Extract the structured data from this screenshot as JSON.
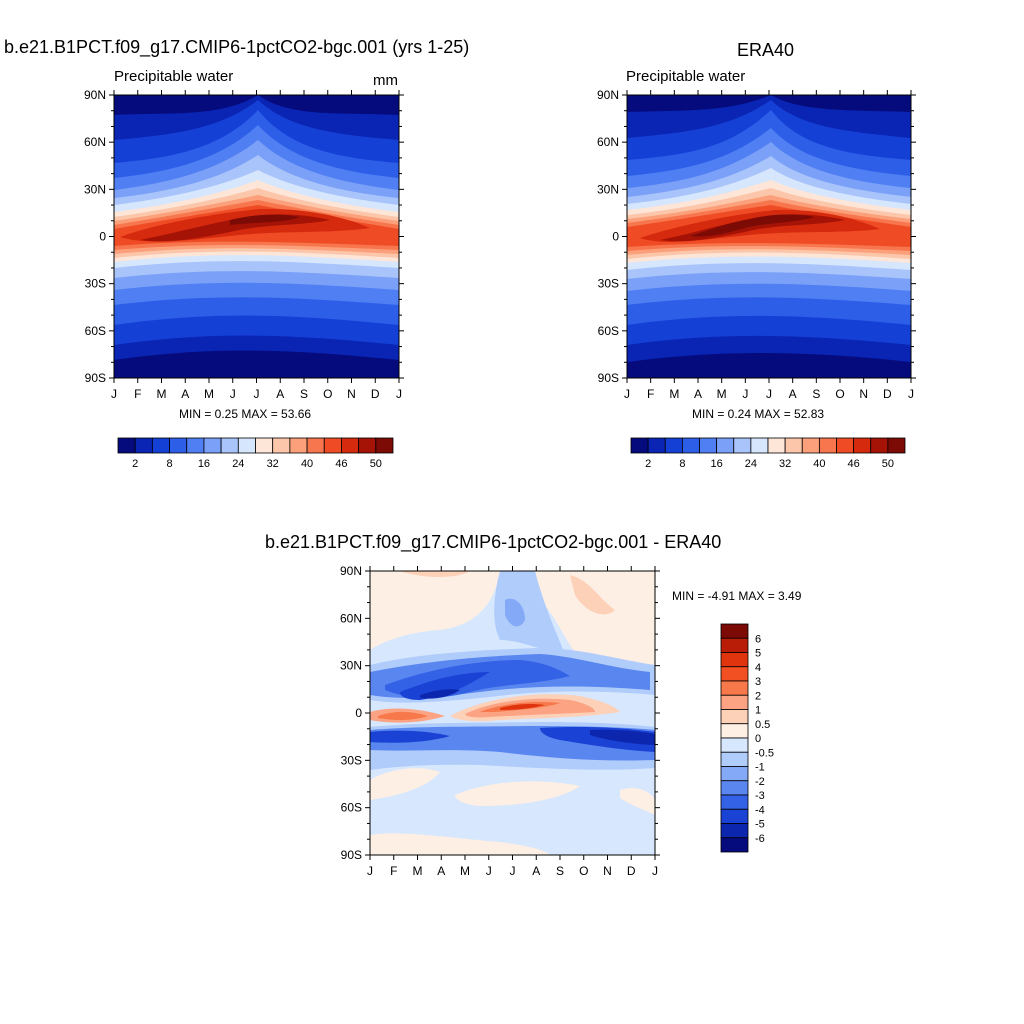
{
  "panel_model": {
    "title": "b.e21.B1PCT.f09_g17.CMIP6-1pctCO2-bgc.001 (yrs 1-25)",
    "left_label": "Precipitable water",
    "right_label": "mm",
    "minmax": "MIN =   0.25 MAX =  53.66"
  },
  "panel_obs": {
    "title": "ERA40",
    "left_label": "Precipitable water",
    "minmax": "MIN =   0.24 MAX =  52.83"
  },
  "panel_diff": {
    "title": "b.e21.B1PCT.f09_g17.CMIP6-1pctCO2-bgc.001 - ERA40",
    "minmax": "MIN =  -4.91 MAX =   3.49"
  },
  "axes": {
    "x_ticks": [
      "J",
      "F",
      "M",
      "A",
      "M",
      "J",
      "J",
      "A",
      "S",
      "O",
      "N",
      "D",
      "J"
    ],
    "y_ticks": [
      "90N",
      "60N",
      "30N",
      "0",
      "30S",
      "60S",
      "90S"
    ]
  },
  "colorbar_top": {
    "labels": [
      "2",
      "8",
      "16",
      "24",
      "32",
      "40",
      "46",
      "50"
    ],
    "colors": [
      "#050b7c",
      "#0a24b4",
      "#1540d6",
      "#2d5ee8",
      "#4f7ff2",
      "#7aa0f7",
      "#a9c4fb",
      "#d6e6fd",
      "#fde6d8",
      "#fcc6aa",
      "#fba07a",
      "#f7764d",
      "#ef4c26",
      "#d52a0e",
      "#a51206",
      "#7c0a05"
    ]
  },
  "colorbar_diff": {
    "labels": [
      "6",
      "5",
      "4",
      "3",
      "2",
      "1",
      "0.5",
      "0",
      "-0.5",
      "-1",
      "-2",
      "-3",
      "-4",
      "-5",
      "-6"
    ],
    "colors": [
      "#7c0a05",
      "#b91d07",
      "#e0340e",
      "#f24f22",
      "#f7784b",
      "#fba382",
      "#fdd0b8",
      "#fdefe3",
      "#d7e7fd",
      "#b0ccfb",
      "#84a9f7",
      "#5a86f0",
      "#3462e6",
      "#1a42d4",
      "#0c26ae",
      "#050b7c"
    ]
  },
  "chart_data": [
    {
      "type": "heatmap",
      "title": "b.e21.B1PCT.f09_g17.CMIP6-1pctCO2-bgc.001 (yrs 1-25)",
      "variable": "Precipitable water",
      "units": "mm",
      "x": [
        "J",
        "F",
        "M",
        "A",
        "M",
        "J",
        "J",
        "A",
        "S",
        "O",
        "N",
        "D",
        "J"
      ],
      "y": [
        "90N",
        "60N",
        "30N",
        "0",
        "30S",
        "60S",
        "90S"
      ],
      "min": 0.25,
      "max": 53.66,
      "levels": [
        2,
        5,
        8,
        12,
        16,
        20,
        24,
        28,
        32,
        36,
        40,
        43,
        46,
        48,
        50
      ],
      "itcz_peak_lat_by_month": [
        -3,
        -5,
        -5,
        -3,
        2,
        6,
        9,
        10,
        9,
        6,
        3,
        -1,
        -3
      ],
      "peak_values_mm": {
        "Jan": 47,
        "Apr": 51,
        "Aug": 53.66,
        "Nov": 47
      }
    },
    {
      "type": "heatmap",
      "title": "ERA40",
      "variable": "Precipitable water",
      "x": [
        "J",
        "F",
        "M",
        "A",
        "M",
        "J",
        "J",
        "A",
        "S",
        "O",
        "N",
        "D",
        "J"
      ],
      "y": [
        "90N",
        "60N",
        "30N",
        "0",
        "30S",
        "60S",
        "90S"
      ],
      "min": 0.24,
      "max": 52.83,
      "levels": [
        2,
        5,
        8,
        12,
        16,
        20,
        24,
        28,
        32,
        36,
        40,
        43,
        46,
        48,
        50
      ],
      "itcz_peak_lat_by_month": [
        -2,
        -3,
        -3,
        -2,
        2,
        6,
        9,
        10,
        9,
        6,
        3,
        0,
        -2
      ],
      "peak_values_mm": {
        "Jan": 46,
        "Apr": 49,
        "Aug": 52.83,
        "Nov": 47
      }
    },
    {
      "type": "heatmap",
      "title": "b.e21.B1PCT.f09_g17.CMIP6-1pctCO2-bgc.001 - ERA40",
      "x": [
        "J",
        "F",
        "M",
        "A",
        "M",
        "J",
        "J",
        "A",
        "S",
        "O",
        "N",
        "D",
        "J"
      ],
      "y": [
        "90N",
        "60N",
        "30N",
        "0",
        "30S",
        "60S",
        "90S"
      ],
      "min": -4.91,
      "max": 3.49,
      "levels": [
        -6,
        -5,
        -4,
        -3,
        -2,
        -1,
        -0.5,
        0,
        0.5,
        1,
        2,
        3,
        4,
        5,
        6
      ],
      "features": [
        {
          "lat_band": "10N-25N",
          "months": "Mar-May",
          "approx_value": -4
        },
        {
          "lat_band": "0-8N",
          "months": "Jul-Aug",
          "approx_value": 3
        },
        {
          "lat_band": "0",
          "months": "Jan-Feb",
          "approx_value": 1.5
        },
        {
          "lat_band": "10S-20S",
          "months": "Oct-Dec",
          "approx_value": -4
        },
        {
          "lat_band": "30N-60N",
          "months": "Jun-Jul",
          "approx_value": -1.5
        },
        {
          "lat_band": "60N-90N",
          "months": "Sep-Oct",
          "approx_value": 1
        }
      ]
    }
  ]
}
